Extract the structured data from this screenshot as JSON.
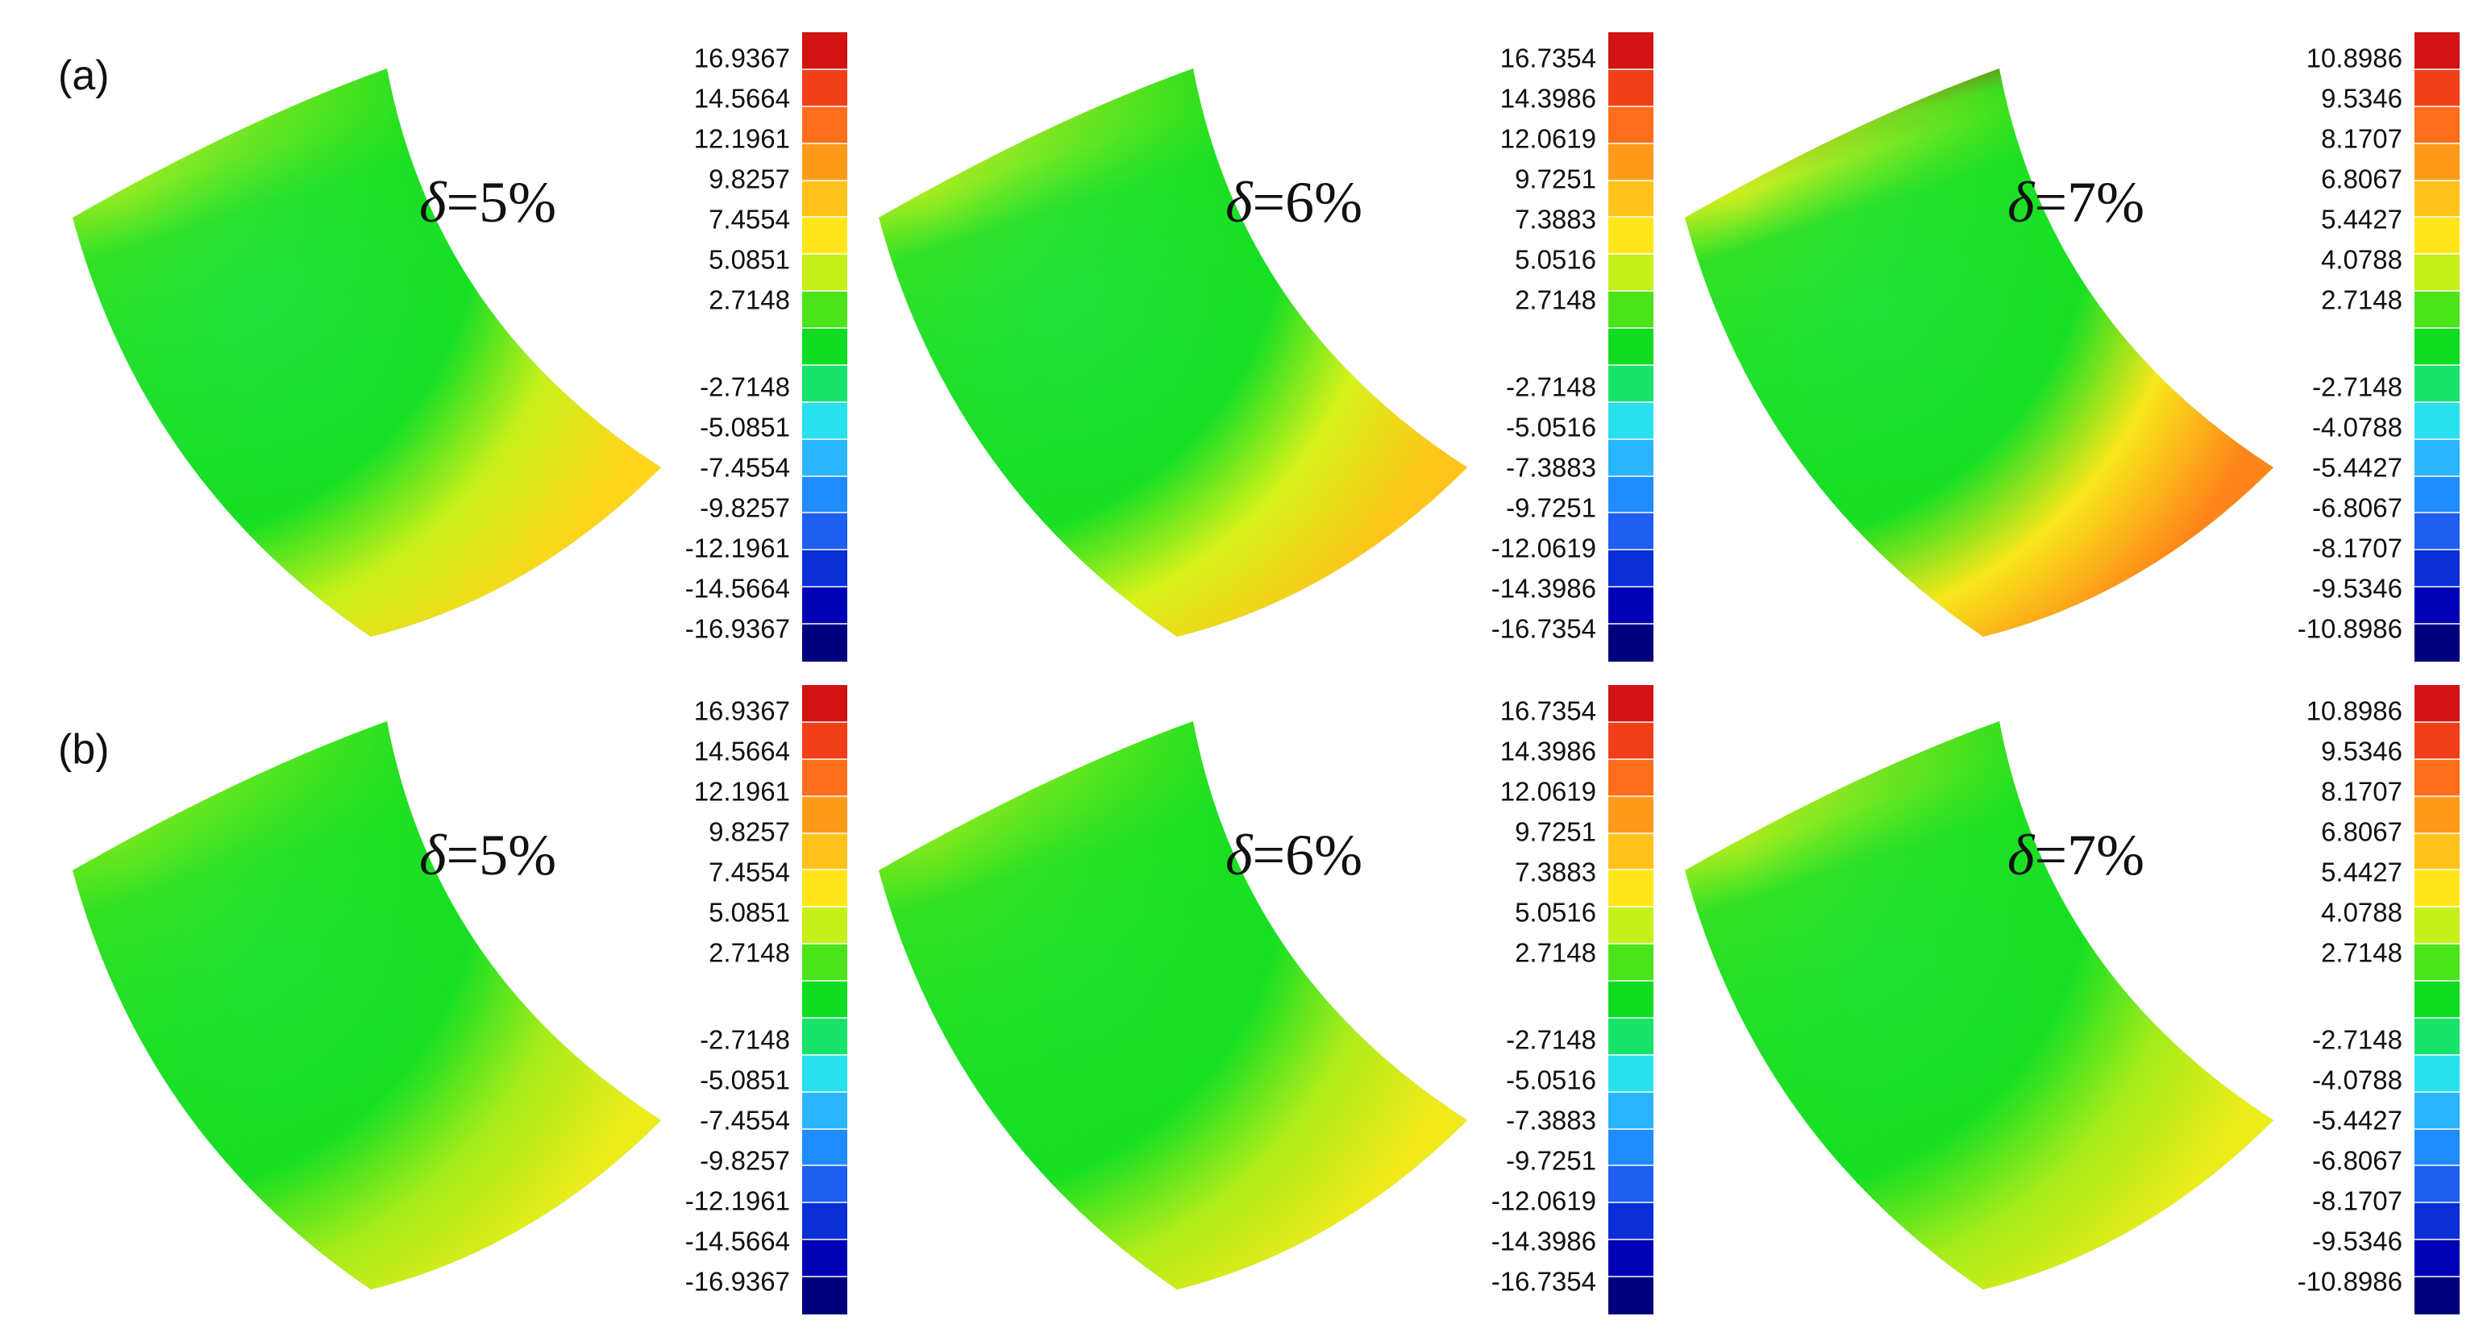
{
  "figure": {
    "row_labels": [
      "(a)",
      "(b)"
    ],
    "delta_symbol": "δ",
    "panels": [
      {
        "row": 0,
        "col": 0,
        "delta": "=5%",
        "colorbar_id": "cb5",
        "hot_top": 0.72,
        "hot_right": 0.66,
        "cool_center": 0.3,
        "dark_rim": false
      },
      {
        "row": 0,
        "col": 1,
        "delta": "=6%",
        "colorbar_id": "cb6",
        "hot_top": 0.8,
        "hot_right": 0.7,
        "cool_center": 0.28,
        "dark_rim": false
      },
      {
        "row": 0,
        "col": 2,
        "delta": "=7%",
        "colorbar_id": "cb7",
        "hot_top": 1.0,
        "hot_right": 0.85,
        "cool_center": 0.25,
        "dark_rim": true
      },
      {
        "row": 1,
        "col": 0,
        "delta": "=5%",
        "colorbar_id": "cb5",
        "hot_top": 0.55,
        "hot_right": 0.55,
        "cool_center": 0.18,
        "dark_rim": false
      },
      {
        "row": 1,
        "col": 1,
        "delta": "=6%",
        "colorbar_id": "cb6",
        "hot_top": 0.62,
        "hot_right": 0.58,
        "cool_center": 0.12,
        "dark_rim": false
      },
      {
        "row": 1,
        "col": 2,
        "delta": "=7%",
        "colorbar_id": "cb7",
        "hot_top": 0.8,
        "hot_right": 0.55,
        "cool_center": 0.18,
        "dark_rim": false
      }
    ],
    "colorbars": {
      "cb5": {
        "ticks": [
          "16.9367",
          "14.5664",
          "12.1961",
          "9.8257",
          "7.4554",
          "5.0851",
          "2.7148",
          "-2.7148",
          "-5.0851",
          "-7.4554",
          "-9.8257",
          "-12.1961",
          "-14.5664",
          "-16.9367"
        ]
      },
      "cb6": {
        "ticks": [
          "16.7354",
          "14.3986",
          "12.0619",
          "9.7251",
          "7.3883",
          "5.0516",
          "2.7148",
          "-2.7148",
          "-5.0516",
          "-7.3883",
          "-9.7251",
          "-12.0619",
          "-14.3986",
          "-16.7354"
        ]
      },
      "cb7": {
        "ticks": [
          "10.8986",
          "9.5346",
          "8.1707",
          "6.8067",
          "5.4427",
          "4.0788",
          "2.7148",
          "-2.7148",
          "-4.0788",
          "-5.4427",
          "-6.8067",
          "-8.1707",
          "-9.5346",
          "-10.8986"
        ]
      }
    },
    "colorbar_colors": [
      "#00007f",
      "#0000b5",
      "#0a2fd6",
      "#1f5ff0",
      "#1f8cff",
      "#29b6ff",
      "#28e0ee",
      "#18e36a",
      "#10dd22",
      "#4be41a",
      "#c6f01a",
      "#ffe61a",
      "#ffc21a",
      "#ff9a1a",
      "#ff6e1a",
      "#f0401a",
      "#d11313"
    ]
  }
}
